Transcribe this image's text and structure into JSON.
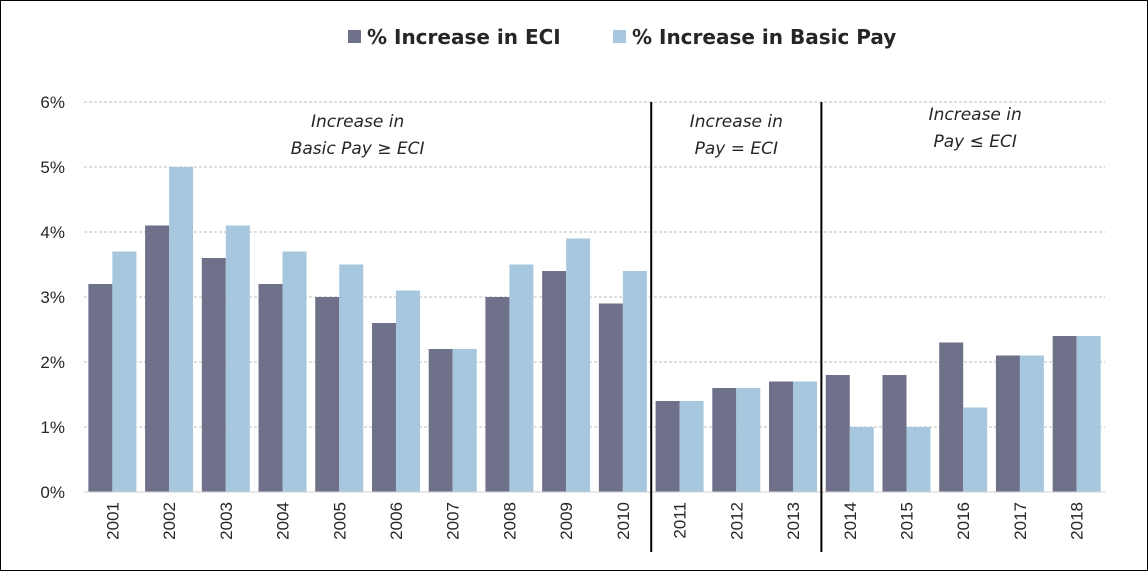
{
  "chart_data": {
    "type": "bar",
    "categories": [
      "2001",
      "2002",
      "2003",
      "2004",
      "2005",
      "2006",
      "2007",
      "2008",
      "2009",
      "2010",
      "2011",
      "2012",
      "2013",
      "2014",
      "2015",
      "2016",
      "2017",
      "2018"
    ],
    "series": [
      {
        "name": "% Increase in ECI",
        "color": "#6f7089",
        "values": [
          3.2,
          4.1,
          3.6,
          3.2,
          3.0,
          2.6,
          2.2,
          3.0,
          3.4,
          2.9,
          1.4,
          1.6,
          1.7,
          1.8,
          1.8,
          2.3,
          2.1,
          2.4
        ]
      },
      {
        "name": "% Increase in Basic Pay",
        "color": "#a6c7de",
        "values": [
          3.7,
          5.0,
          4.1,
          3.7,
          3.5,
          3.1,
          2.2,
          3.5,
          3.9,
          3.4,
          1.4,
          1.6,
          1.7,
          1.0,
          1.0,
          1.3,
          2.1,
          2.4
        ]
      }
    ],
    "ylim": [
      0,
      6
    ],
    "yticks": [
      "0%",
      "1%",
      "2%",
      "3%",
      "4%",
      "5%",
      "6%"
    ],
    "grid": true,
    "legend_position": "top-center",
    "dividers_after": [
      "2010",
      "2013"
    ],
    "annotations": [
      {
        "lines": [
          "Increase in",
          "Basic Pay ≥ ECI"
        ]
      },
      {
        "lines": [
          "Increase in",
          "Pay = ECI"
        ]
      },
      {
        "lines": [
          "Increase in",
          "Pay ≤ ECI"
        ]
      }
    ]
  }
}
